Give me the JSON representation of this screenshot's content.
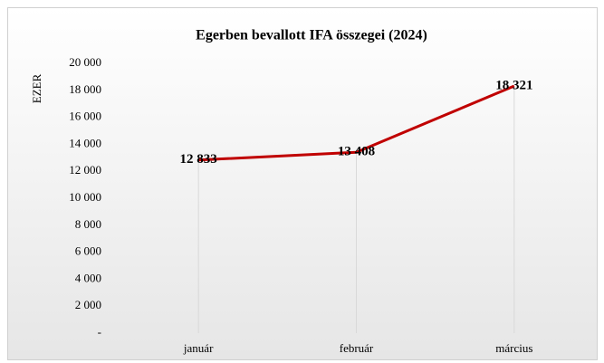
{
  "chart_data": {
    "type": "line",
    "title": "Egerben bevallott IFA összegei (2024)",
    "y_label": "EZER",
    "categories": [
      "január",
      "február",
      "március"
    ],
    "series": [
      {
        "name": "IFA",
        "color": "#c00000",
        "values": [
          12833,
          13408,
          18321
        ],
        "value_labels": [
          "12 833",
          "13 408",
          "18 321"
        ]
      }
    ],
    "ylim": [
      0,
      20000
    ],
    "yticks": [
      {
        "value": 0,
        "label": "-"
      },
      {
        "value": 2000,
        "label": "2 000"
      },
      {
        "value": 4000,
        "label": "4 000"
      },
      {
        "value": 6000,
        "label": "6 000"
      },
      {
        "value": 8000,
        "label": "8 000"
      },
      {
        "value": 10000,
        "label": "10 000"
      },
      {
        "value": 12000,
        "label": "12 000"
      },
      {
        "value": 14000,
        "label": "14 000"
      },
      {
        "value": 16000,
        "label": "16 000"
      },
      {
        "value": 18000,
        "label": "18 000"
      },
      {
        "value": 20000,
        "label": "20 000"
      }
    ],
    "drop_lines": true
  }
}
